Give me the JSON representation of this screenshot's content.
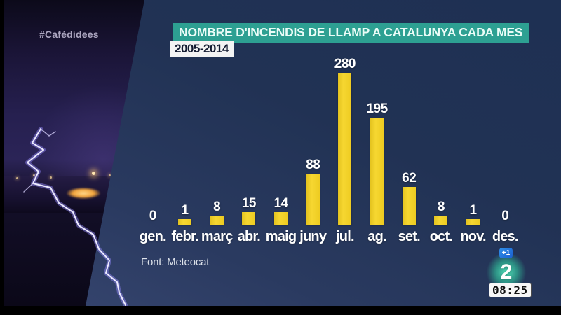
{
  "broadcast": {
    "hashtag": "#Cafèdidees",
    "plus_badge": "+1",
    "channel_number": "2",
    "clock": "08:25"
  },
  "chart_data": {
    "type": "bar",
    "title": "NOMBRE D'INCENDIS DE LLAMP A CATALUNYA CADA MES",
    "period": "2005-2014",
    "source": "Font: Meteocat",
    "categories": [
      "gen.",
      "febr.",
      "març",
      "abr.",
      "maig",
      "juny",
      "jul.",
      "ag.",
      "set.",
      "oct.",
      "nov.",
      "des."
    ],
    "values": [
      0,
      1,
      8,
      15,
      14,
      88,
      280,
      195,
      62,
      8,
      1,
      0
    ],
    "ylim": [
      0,
      280
    ],
    "grid": false,
    "legend": false,
    "bar_color": "#f2d228",
    "label_color": "#ffffff",
    "title_bg": "#2da092",
    "panel_color": "#213254",
    "glow_teal": "#35d1ab",
    "badge_blue": "#2273df"
  }
}
